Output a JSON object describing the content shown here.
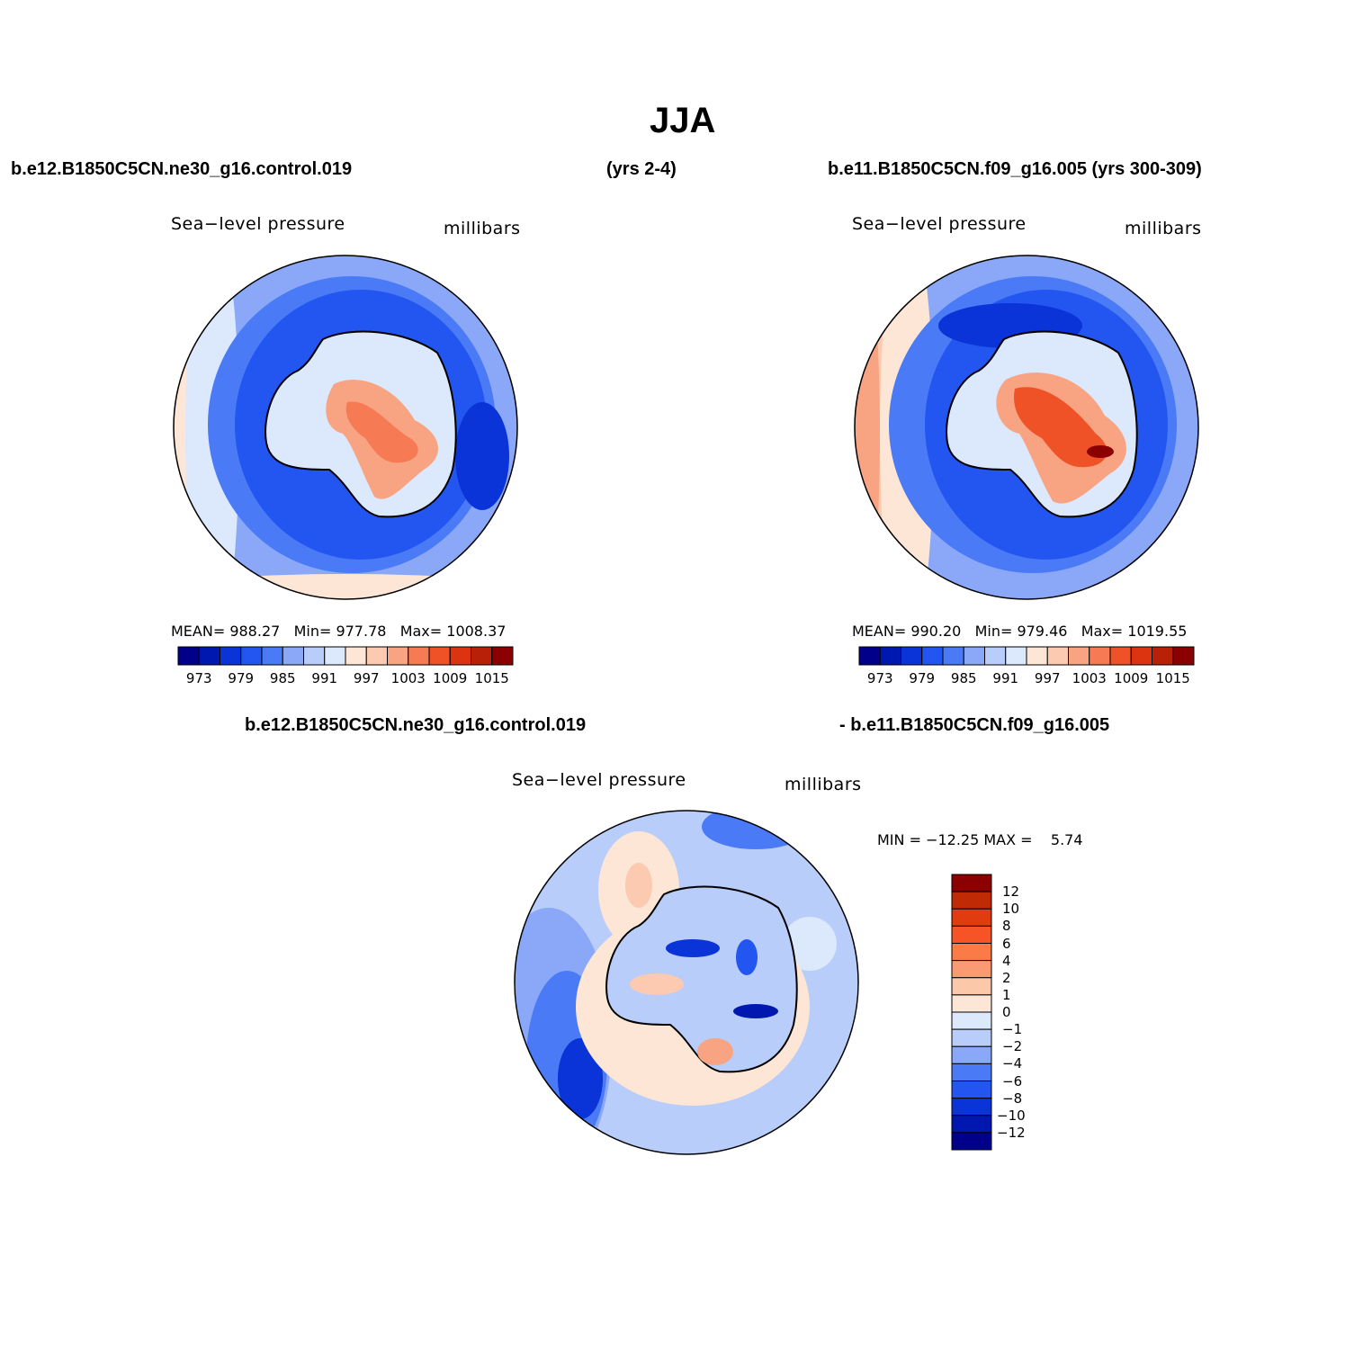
{
  "title": "JJA",
  "headers": {
    "left": "b.e12.B1850C5CN.ne30_g16.control.019",
    "middle": "(yrs 2-4)",
    "right": "b.e11.B1850C5CN.f09_g16.005 (yrs 300-309)",
    "diff_left": "b.e12.B1850C5CN.ne30_g16.control.019",
    "diff_right": "- b.e11.B1850C5CN.f09_g16.005"
  },
  "panels": [
    {
      "variable": "Sea−level pressure",
      "units": "millibars",
      "stats": "MEAN= 988.27   Min= 977.78   Max= 1008.37"
    },
    {
      "variable": "Sea−level pressure",
      "units": "millibars",
      "stats": "MEAN= 990.20   Min= 979.46   Max= 1019.55"
    },
    {
      "variable": "Sea−level pressure",
      "units": "millibars",
      "stats": "MIN = −12.25 MAX =    5.74"
    }
  ],
  "colorbar_main": {
    "tick_labels": [
      "973",
      "979",
      "985",
      "991",
      "997",
      "1003",
      "1009",
      "1015"
    ],
    "colors": [
      "#00008b",
      "#0018b0",
      "#0a33d8",
      "#2356f0",
      "#4a7af5",
      "#8aa8f7",
      "#b8cdf9",
      "#dce8fb",
      "#fde6d6",
      "#fbcab0",
      "#f8a483",
      "#f67a54",
      "#ef5226",
      "#dc3410",
      "#b82008",
      "#8b0000"
    ]
  },
  "colorbar_diff": {
    "tick_labels": [
      "12",
      "10",
      "8",
      "6",
      "4",
      "2",
      "1",
      "0",
      "−1",
      "−2",
      "−4",
      "−6",
      "−8",
      "−10",
      "−12"
    ],
    "colors": [
      "#8b0000",
      "#c02a05",
      "#e03c10",
      "#f65426",
      "#fa7a48",
      "#fb9a72",
      "#fcc8aa",
      "#fde6d6",
      "#dce8fb",
      "#b8cdf9",
      "#8aa8f7",
      "#4a7af5",
      "#2356f0",
      "#0a33d8",
      "#0018b0",
      "#00008b"
    ]
  }
}
